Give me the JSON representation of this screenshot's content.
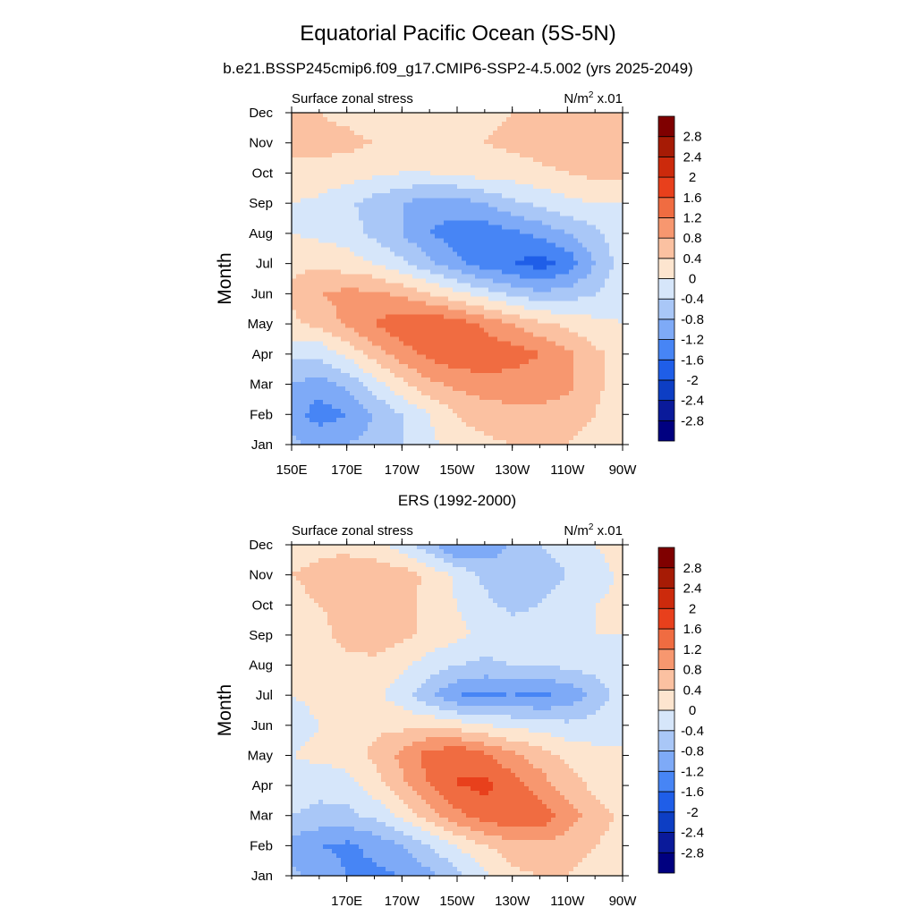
{
  "figure": {
    "title": "Equatorial Pacific Ocean (5S-5N)",
    "subtitle": "b.e21.BSSP245cmip6.f09_g17.CMIP6-SSP2-4.5.002 (yrs 2025-2049)"
  },
  "colorbar": {
    "colors": [
      "#000080",
      "#0a1a9a",
      "#0d3ec4",
      "#1f5ee8",
      "#4785f5",
      "#7eaaf7",
      "#a9c7f7",
      "#d6e6fa",
      "#fde5cf",
      "#fbc1a1",
      "#f7976f",
      "#f06c41",
      "#e8401c",
      "#cc2a0c",
      "#a61b05",
      "#7f0000"
    ],
    "labels": [
      "-2.8",
      "-2.4",
      "-2",
      "-1.6",
      "-1.2",
      "-0.8",
      "-0.4",
      "0",
      "0.4",
      "0.8",
      "1.2",
      "1.6",
      "2",
      "2.4",
      "2.8"
    ]
  },
  "chart_data": [
    {
      "type": "heatmap",
      "title": "",
      "left_string": "Surface zonal stress",
      "right_string": "N/m",
      "right_string_sup": "2",
      "right_string_suffix": " x.01",
      "ylabel": "Month",
      "xlabel": "",
      "x_ticks": [
        "150E",
        "170E",
        "170W",
        "150W",
        "130W",
        "110W",
        "90W"
      ],
      "x_values_deg_east": [
        150,
        170,
        190,
        210,
        230,
        250,
        270
      ],
      "xlim": [
        150,
        270
      ],
      "y_ticks": [
        "Jan",
        "Feb",
        "Mar",
        "Apr",
        "May",
        "Jun",
        "Jul",
        "Aug",
        "Sep",
        "Oct",
        "Nov",
        "Dec"
      ],
      "levels": [
        -2.8,
        -2.4,
        -2,
        -1.6,
        -1.2,
        -0.8,
        -0.4,
        0,
        0.4,
        0.8,
        1.2,
        1.6,
        2,
        2.4,
        2.8
      ],
      "z_rows_by_month": [
        [
          -0.7,
          -0.9,
          -0.8,
          -0.6,
          -0.4,
          -0.1,
          0.2,
          0.3,
          0.4,
          0.5,
          0.4,
          0.2,
          0.0
        ],
        [
          -1.0,
          -1.4,
          -1.2,
          -0.8,
          -0.4,
          0.0,
          0.4,
          0.6,
          0.7,
          0.7,
          0.6,
          0.4,
          0.1
        ],
        [
          -0.8,
          -1.0,
          -0.7,
          -0.2,
          0.3,
          0.7,
          0.9,
          1.0,
          1.0,
          1.0,
          0.9,
          0.5,
          0.2
        ],
        [
          -0.3,
          -0.3,
          0.1,
          0.6,
          1.0,
          1.3,
          1.5,
          1.5,
          1.4,
          1.2,
          0.9,
          0.5,
          0.2
        ],
        [
          0.3,
          0.5,
          0.9,
          1.2,
          1.5,
          1.6,
          1.4,
          1.1,
          0.8,
          0.5,
          0.3,
          0.1,
          0.0
        ],
        [
          0.5,
          0.8,
          0.9,
          0.9,
          0.7,
          0.4,
          0.1,
          -0.2,
          -0.5,
          -0.7,
          -0.6,
          -0.4,
          -0.1
        ],
        [
          0.3,
          0.3,
          0.2,
          0.0,
          -0.3,
          -0.7,
          -1.1,
          -1.4,
          -1.6,
          -1.8,
          -1.5,
          -0.8,
          -0.2
        ],
        [
          0.0,
          -0.1,
          -0.2,
          -0.5,
          -0.8,
          -1.2,
          -1.4,
          -1.5,
          -1.3,
          -1.1,
          -0.8,
          -0.5,
          -0.1
        ],
        [
          0.0,
          -0.1,
          -0.3,
          -0.6,
          -0.8,
          -1.0,
          -1.0,
          -0.8,
          -0.5,
          -0.3,
          -0.1,
          0.0,
          0.0
        ],
        [
          0.3,
          0.3,
          0.2,
          0.1,
          0.0,
          0.0,
          0.1,
          0.2,
          0.2,
          0.3,
          0.4,
          0.5,
          0.5
        ],
        [
          0.5,
          0.5,
          0.5,
          0.4,
          0.3,
          0.3,
          0.3,
          0.4,
          0.5,
          0.6,
          0.7,
          0.7,
          0.7
        ],
        [
          0.4,
          0.4,
          0.3,
          0.2,
          0.2,
          0.2,
          0.2,
          0.3,
          0.4,
          0.5,
          0.5,
          0.6,
          0.6
        ]
      ]
    },
    {
      "type": "heatmap",
      "title": "ERS (1992-2000)",
      "left_string": "Surface zonal stress",
      "right_string": "N/m",
      "right_string_sup": "2",
      "right_string_suffix": " x.01",
      "ylabel": "Month",
      "xlabel": "",
      "x_ticks": [
        "170E",
        "170W",
        "150W",
        "130W",
        "110W",
        "90W"
      ],
      "x_values_deg_east": [
        170,
        190,
        210,
        230,
        250,
        270
      ],
      "xlim": [
        150,
        270
      ],
      "y_ticks": [
        "Jan",
        "Feb",
        "Mar",
        "Apr",
        "May",
        "Jun",
        "Jul",
        "Aug",
        "Sep",
        "Oct",
        "Nov",
        "Dec"
      ],
      "levels": [
        -2.8,
        -2.4,
        -2,
        -1.6,
        -1.2,
        -0.8,
        -0.4,
        0,
        0.4,
        0.8,
        1.2,
        1.6,
        2,
        2.4,
        2.8
      ],
      "z_rows_by_month": [
        [
          -0.7,
          -0.9,
          -1.2,
          -1.3,
          -1.2,
          -0.9,
          -0.5,
          -0.1,
          0.3,
          0.4,
          0.4,
          0.2,
          0.1
        ],
        [
          -1.0,
          -1.2,
          -1.3,
          -1.1,
          -0.8,
          -0.4,
          0.0,
          0.4,
          0.6,
          0.7,
          0.6,
          0.4,
          0.2
        ],
        [
          -0.4,
          -0.5,
          -0.5,
          -0.3,
          0.1,
          0.6,
          1.1,
          1.4,
          1.6,
          1.5,
          1.0,
          0.6,
          0.3
        ],
        [
          -0.2,
          -0.3,
          -0.2,
          0.2,
          0.7,
          1.2,
          1.6,
          1.7,
          1.4,
          1.0,
          0.6,
          0.3,
          0.1
        ],
        [
          0.0,
          0.1,
          0.2,
          0.5,
          0.9,
          1.4,
          1.6,
          1.3,
          0.9,
          0.6,
          0.3,
          0.1,
          0.0
        ],
        [
          -0.2,
          0.0,
          0.2,
          0.3,
          0.3,
          0.3,
          0.2,
          0.0,
          -0.1,
          -0.2,
          -0.3,
          -0.2,
          0.0
        ],
        [
          0.0,
          0.1,
          0.2,
          0.1,
          -0.2,
          -0.7,
          -1.2,
          -1.3,
          -1.2,
          -1.3,
          -1.1,
          -0.7,
          -0.2
        ],
        [
          0.1,
          0.2,
          0.3,
          0.3,
          0.1,
          -0.2,
          -0.4,
          -0.5,
          -0.4,
          -0.4,
          -0.3,
          -0.2,
          -0.1
        ],
        [
          0.2,
          0.3,
          0.5,
          0.6,
          0.5,
          0.3,
          0.1,
          -0.1,
          -0.2,
          -0.1,
          0.0,
          0.0,
          0.0
        ],
        [
          0.3,
          0.4,
          0.5,
          0.6,
          0.5,
          0.3,
          0.0,
          -0.3,
          -0.5,
          -0.4,
          -0.2,
          0.0,
          0.1
        ],
        [
          0.4,
          0.5,
          0.6,
          0.7,
          0.6,
          0.3,
          -0.1,
          -0.5,
          -0.7,
          -0.6,
          -0.4,
          -0.2,
          0.1
        ],
        [
          0.2,
          0.3,
          0.3,
          0.1,
          -0.2,
          -0.7,
          -1.3,
          -1.1,
          -0.7,
          -0.4,
          -0.2,
          0.0,
          0.2
        ]
      ]
    }
  ]
}
